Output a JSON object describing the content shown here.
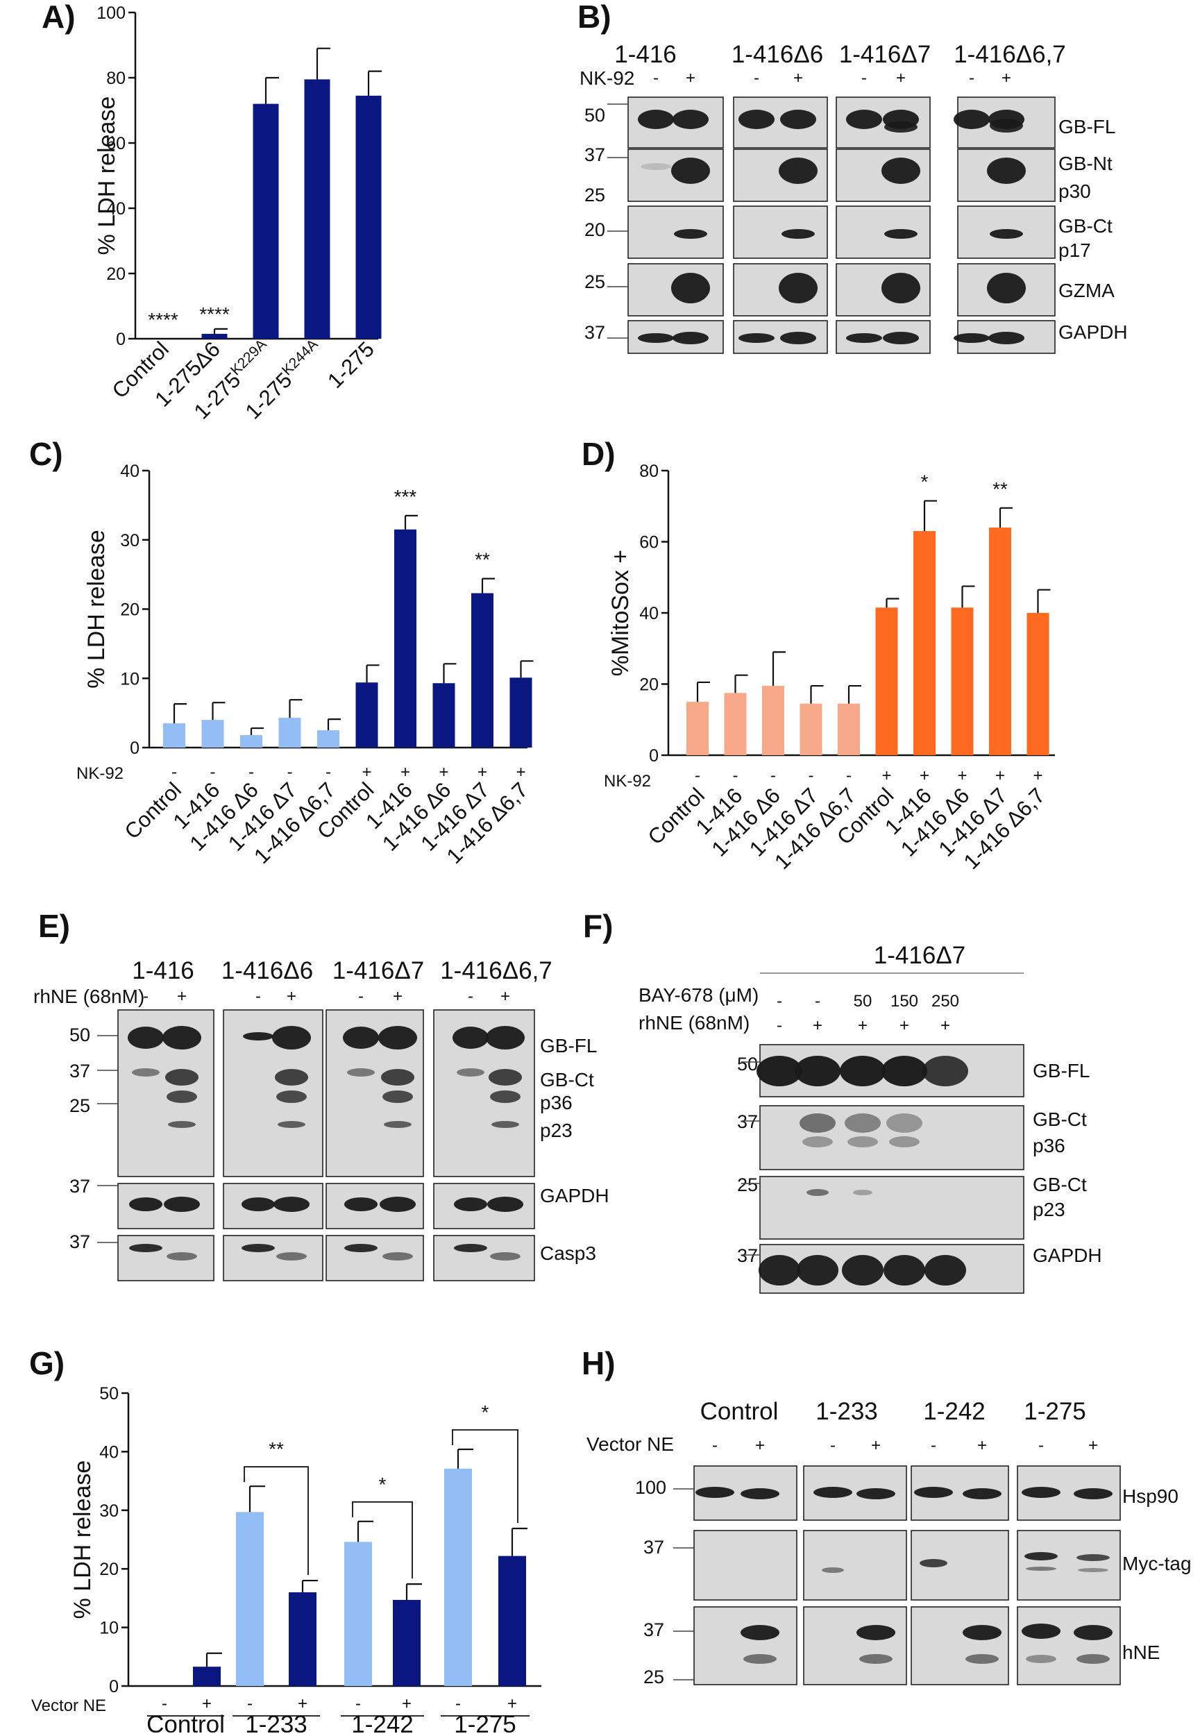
{
  "colors": {
    "dark_blue": "#0b1780",
    "light_blue": "#93bdf5",
    "orange": "#ff6a21",
    "light_orange": "#f8a98a"
  },
  "panel_labels": [
    "A)",
    "B)",
    "C)",
    "D)",
    "E)",
    "F)",
    "G)",
    "H)"
  ],
  "chart_data": [
    {
      "id": "A",
      "type": "bar",
      "ylabel": "% LDH release",
      "ylim": [
        0,
        100
      ],
      "yticks": [
        0,
        20,
        40,
        60,
        80,
        100
      ],
      "categories": [
        "Control",
        "1-275Δ6",
        "1-275K229A",
        "1-275K244A",
        "1-275"
      ],
      "values": [
        0,
        1.5,
        72,
        79.5,
        74.5
      ],
      "errors": [
        0,
        1.5,
        8,
        9.5,
        7.5
      ],
      "significance": [
        "****",
        "****",
        "",
        "",
        ""
      ],
      "color": "#0b1780"
    },
    {
      "id": "C",
      "type": "bar",
      "ylabel": "% LDH release",
      "ylim": [
        0,
        40
      ],
      "yticks": [
        0,
        10,
        20,
        30,
        40
      ],
      "treatment_label": "NK-92",
      "categories": [
        "Control",
        "1-416",
        "1-416 Δ6",
        "1-416 Δ7",
        "1-416 Δ6,7",
        "Control",
        "1-416",
        "1-416 Δ6",
        "1-416 Δ7",
        "1-416 Δ6,7"
      ],
      "treatment": [
        "-",
        "-",
        "-",
        "-",
        "-",
        "+",
        "+",
        "+",
        "+",
        "+"
      ],
      "values": [
        3.5,
        4,
        1.8,
        4.3,
        2.5,
        9.4,
        31.5,
        9.3,
        22.3,
        10.1
      ],
      "errors": [
        2.8,
        2.5,
        1,
        2.6,
        1.6,
        2.5,
        2,
        2.8,
        2.1,
        2.4
      ],
      "significance": [
        "",
        "",
        "",
        "",
        "",
        "",
        "***",
        "",
        "**",
        ""
      ],
      "bar_colors": [
        "#93bdf5",
        "#93bdf5",
        "#93bdf5",
        "#93bdf5",
        "#93bdf5",
        "#0b1780",
        "#0b1780",
        "#0b1780",
        "#0b1780",
        "#0b1780"
      ]
    },
    {
      "id": "D",
      "type": "bar",
      "ylabel": "%MitoSox +",
      "ylim": [
        0,
        80
      ],
      "yticks": [
        0,
        20,
        40,
        60,
        80
      ],
      "treatment_label": "NK-92",
      "categories": [
        "Control",
        "1-416",
        "1-416 Δ6",
        "1-416 Δ7",
        "1-416 Δ6,7",
        "Control",
        "1-416",
        "1-416 Δ6",
        "1-416 Δ7",
        "1-416 Δ6,7"
      ],
      "treatment": [
        "-",
        "-",
        "-",
        "-",
        "-",
        "+",
        "+",
        "+",
        "+",
        "+"
      ],
      "values": [
        15,
        17.5,
        19.5,
        14.5,
        14.5,
        41.5,
        63,
        41.5,
        64,
        40
      ],
      "errors": [
        5.5,
        5,
        9.5,
        5,
        5,
        2.5,
        8.5,
        6,
        5.5,
        6.5
      ],
      "significance": [
        "",
        "",
        "",
        "",
        "",
        "",
        "*",
        "",
        "**",
        ""
      ],
      "bar_colors": [
        "#f8a98a",
        "#f8a98a",
        "#f8a98a",
        "#f8a98a",
        "#f8a98a",
        "#ff6a21",
        "#ff6a21",
        "#ff6a21",
        "#ff6a21",
        "#ff6a21"
      ]
    },
    {
      "id": "G",
      "type": "bar",
      "ylabel": "% LDH release",
      "ylim": [
        0,
        50
      ],
      "yticks": [
        0,
        10,
        20,
        30,
        40,
        50
      ],
      "treatment_label": "Vector NE",
      "groups": [
        "Control",
        "1-233",
        "1-242",
        "1-275"
      ],
      "treatment": [
        "-",
        "+",
        "-",
        "+",
        "-",
        "+",
        "-",
        "+"
      ],
      "values": [
        0,
        3.3,
        29.7,
        16,
        24.6,
        14.7,
        37.1,
        22.2
      ],
      "errors": [
        0,
        2.3,
        4.4,
        2,
        3.5,
        2.7,
        3.3,
        4.7
      ],
      "comparisons": [
        {
          "pair": [
            2,
            3
          ],
          "label": "**"
        },
        {
          "pair": [
            4,
            5
          ],
          "label": "*"
        },
        {
          "pair": [
            6,
            7
          ],
          "label": "*"
        }
      ],
      "bar_colors": [
        "#93bdf5",
        "#0b1780",
        "#93bdf5",
        "#0b1780",
        "#93bdf5",
        "#0b1780",
        "#93bdf5",
        "#0b1780"
      ]
    }
  ],
  "blots": {
    "B": {
      "constructs": [
        "1-416",
        "1-416Δ6",
        "1-416Δ7",
        "1-416Δ6,7"
      ],
      "treatment_label": "NK-92",
      "lanes": [
        "-",
        "+"
      ],
      "mw": [
        "50",
        "37",
        "25",
        "20",
        "25",
        "37"
      ],
      "rows": [
        {
          "label": "GB-FL"
        },
        {
          "label": "GB-Nt",
          "sub": "p30"
        },
        {
          "label": "GB-Ct",
          "sub": "p17"
        },
        {
          "label": "GZMA"
        },
        {
          "label": "GAPDH"
        }
      ]
    },
    "E": {
      "constructs": [
        "1-416",
        "1-416Δ6",
        "1-416Δ7",
        "1-416Δ6,7"
      ],
      "treatment_label": "rhNE (68nM)",
      "lanes": [
        "-",
        "+"
      ],
      "mw": [
        "50",
        "37",
        "25",
        "37",
        "37"
      ],
      "labels": [
        "GB-FL",
        "GB-Ct",
        "p36",
        "p23",
        "GAPDH",
        "Casp3"
      ]
    },
    "F": {
      "construct": "1-416Δ7",
      "inhibitor_label": "BAY-678 (μM)",
      "inhibitor": [
        "-",
        "-",
        "50",
        "150",
        "250"
      ],
      "treatment_label": "rhNE (68nM)",
      "treatment": [
        "-",
        "+",
        "+",
        "+",
        "+"
      ],
      "mw": [
        "50",
        "37",
        "25",
        "37"
      ],
      "rows": [
        {
          "label": "GB-FL"
        },
        {
          "label": "GB-Ct",
          "sub": "p36"
        },
        {
          "label": "GB-Ct",
          "sub": "p23"
        },
        {
          "label": "GAPDH"
        }
      ]
    },
    "H": {
      "constructs": [
        "Control",
        "1-233",
        "1-242",
        "1-275"
      ],
      "treatment_label": "Vector NE",
      "lanes": [
        "-",
        "+"
      ],
      "mw": [
        "100",
        "37",
        "37",
        "25"
      ],
      "labels": [
        "Hsp90",
        "Myc-tag",
        "hNE"
      ]
    }
  }
}
